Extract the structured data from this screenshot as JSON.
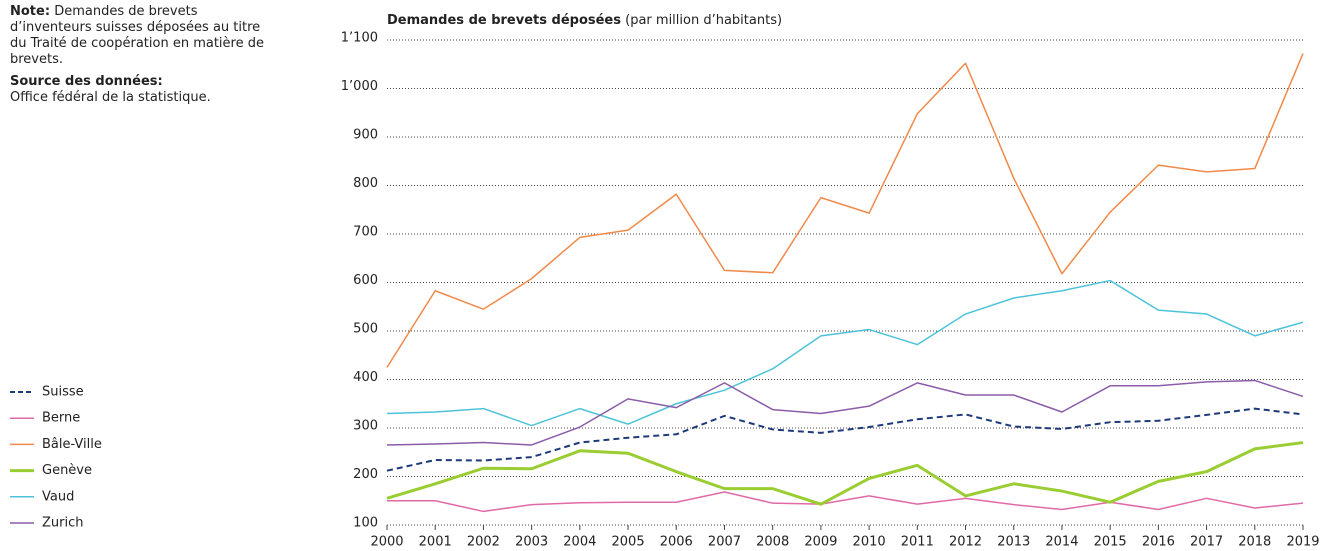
{
  "notes": {
    "note_label": "Note:",
    "note_text": "Demandes de brevets d’inventeurs suisses déposées au titre du Traité de coopération en matière de brevets.",
    "source_label": "Source des données:",
    "source_text": "Office fédéral de la statistique."
  },
  "chart_data": {
    "type": "line",
    "title": "Demandes de brevets déposées",
    "subtitle": "(par million d’habitants)",
    "x": [
      2000,
      2001,
      2002,
      2003,
      2004,
      2005,
      2006,
      2007,
      2008,
      2009,
      2010,
      2011,
      2012,
      2013,
      2014,
      2015,
      2016,
      2017,
      2018,
      2019
    ],
    "xlim": [
      2000,
      2019
    ],
    "xticks": [
      2000,
      2001,
      2002,
      2003,
      2004,
      2005,
      2006,
      2007,
      2008,
      2009,
      2010,
      2011,
      2012,
      2013,
      2014,
      2015,
      2016,
      2017,
      2018,
      2019
    ],
    "ylim": [
      100,
      1100
    ],
    "yticks": [
      100,
      200,
      300,
      400,
      500,
      600,
      700,
      800,
      900,
      {
        "value": 1000,
        "label": "1’000"
      },
      {
        "value": 1100,
        "label": "1’100"
      }
    ],
    "grid": true,
    "series": [
      {
        "name": "Suisse",
        "color": "#1f3a7a",
        "style": "dashed",
        "width": 2,
        "values": [
          212,
          234,
          233,
          240,
          270,
          280,
          287,
          325,
          297,
          290,
          302,
          318,
          328,
          303,
          298,
          312,
          315,
          327,
          340,
          328
        ]
      },
      {
        "name": "Berne",
        "color": "#e06aa6",
        "style": "solid",
        "width": 1.5,
        "values": [
          150,
          150,
          128,
          142,
          146,
          147,
          147,
          168,
          145,
          143,
          160,
          143,
          155,
          142,
          132,
          147,
          132,
          155,
          135,
          145
        ]
      },
      {
        "name": "Bâle-Ville",
        "color": "#f08a4b",
        "style": "solid",
        "width": 1.5,
        "values": [
          425,
          583,
          545,
          608,
          693,
          708,
          782,
          625,
          620,
          775,
          743,
          948,
          1052,
          815,
          618,
          745,
          842,
          828,
          835,
          1072
        ]
      },
      {
        "name": "Genève",
        "color": "#9acd32",
        "style": "solid",
        "width": 3,
        "values": [
          155,
          185,
          217,
          216,
          253,
          248,
          210,
          175,
          175,
          143,
          196,
          223,
          160,
          185,
          170,
          147,
          190,
          210,
          257,
          270
        ]
      },
      {
        "name": "Vaud",
        "color": "#4dc3d9",
        "style": "solid",
        "width": 1.5,
        "values": [
          330,
          333,
          340,
          305,
          340,
          308,
          350,
          378,
          422,
          490,
          503,
          472,
          535,
          568,
          583,
          604,
          543,
          535,
          490,
          518
        ]
      },
      {
        "name": "Zurich",
        "color": "#8b5ca8",
        "style": "solid",
        "width": 1.5,
        "values": [
          265,
          267,
          270,
          265,
          302,
          360,
          342,
          393,
          338,
          330,
          345,
          393,
          368,
          368,
          333,
          387,
          387,
          395,
          398,
          365
        ]
      }
    ]
  }
}
